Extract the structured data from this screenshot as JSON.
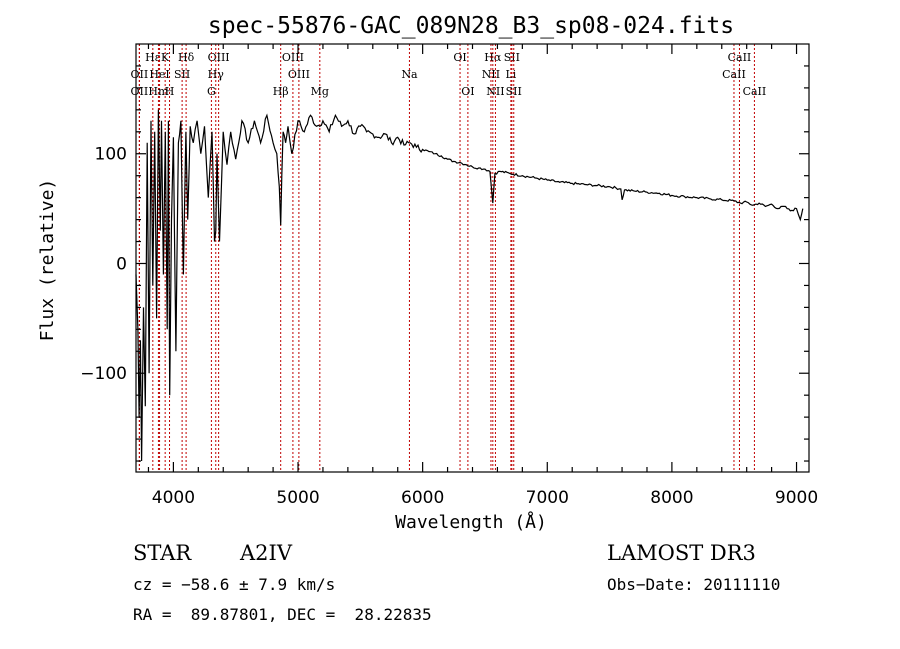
{
  "chart_data": {
    "type": "line",
    "title": "spec-55876-GAC_089N28_B3_sp08-024.fits",
    "xlabel": "Wavelength (Å)",
    "ylabel": "Flux (relative)",
    "xlim": [
      3700,
      9100
    ],
    "ylim": [
      -190,
      200
    ],
    "xticks": [
      4000,
      5000,
      6000,
      7000,
      8000,
      9000
    ],
    "xtick_labels": [
      "4000",
      "5000",
      "6000",
      "7000",
      "8000",
      "9000"
    ],
    "yticks": [
      100,
      0,
      -100
    ],
    "ytick_labels": [
      "100",
      "0",
      "−100"
    ],
    "grid": false,
    "spectrum": {
      "x": [
        3700,
        3715,
        3725,
        3735,
        3745,
        3760,
        3775,
        3790,
        3805,
        3820,
        3835,
        3850,
        3865,
        3880,
        3895,
        3905,
        3920,
        3935,
        3950,
        3960,
        3970,
        3985,
        4000,
        4020,
        4040,
        4060,
        4080,
        4100,
        4115,
        4135,
        4160,
        4190,
        4220,
        4250,
        4280,
        4310,
        4330,
        4340,
        4350,
        4370,
        4400,
        4430,
        4460,
        4500,
        4550,
        4600,
        4650,
        4700,
        4750,
        4800,
        4830,
        4850,
        4861,
        4870,
        4880,
        4900,
        4920,
        4950,
        5000,
        5050,
        5100,
        5150,
        5200,
        5250,
        5300,
        5350,
        5400,
        5450,
        5500,
        5550,
        5600,
        5650,
        5700,
        5750,
        5800,
        5850,
        5900,
        5950,
        6000,
        6050,
        6100,
        6150,
        6200,
        6250,
        6300,
        6350,
        6400,
        6450,
        6500,
        6540,
        6563,
        6580,
        6620,
        6700,
        6800,
        6900,
        7000,
        7100,
        7200,
        7300,
        7400,
        7500,
        7590,
        7600,
        7620,
        7700,
        7800,
        7900,
        8000,
        8100,
        8200,
        8300,
        8400,
        8500,
        8550,
        8600,
        8650,
        8700,
        8750,
        8800,
        8850,
        8900,
        8950,
        9000,
        9030,
        9050
      ],
      "y": [
        -10,
        -60,
        -140,
        -70,
        -180,
        -40,
        -130,
        110,
        -100,
        130,
        -20,
        120,
        -50,
        140,
        30,
        130,
        -10,
        120,
        -60,
        130,
        -120,
        40,
        115,
        -80,
        110,
        130,
        -10,
        120,
        40,
        125,
        110,
        130,
        100,
        125,
        60,
        120,
        20,
        30,
        100,
        20,
        120,
        90,
        120,
        95,
        130,
        110,
        130,
        110,
        135,
        110,
        100,
        70,
        35,
        80,
        120,
        110,
        125,
        100,
        130,
        120,
        135,
        125,
        130,
        120,
        135,
        125,
        130,
        118,
        125,
        120,
        118,
        115,
        118,
        110,
        115,
        108,
        110,
        106,
        104,
        102,
        100,
        98,
        95,
        93,
        92,
        90,
        88,
        87,
        86,
        84,
        55,
        82,
        84,
        82,
        80,
        78,
        76,
        74,
        73,
        72,
        71,
        70,
        68,
        58,
        67,
        66,
        65,
        64,
        62,
        61,
        60,
        59,
        58,
        57,
        55,
        56,
        53,
        55,
        52,
        54,
        50,
        52,
        48,
        50,
        40,
        50
      ]
    },
    "spectral_lines": [
      {
        "label": "Hε",
        "x": 3835,
        "row": 1
      },
      {
        "label": "OII",
        "x": 3727,
        "row": 2
      },
      {
        "label": "OII",
        "x": 3727,
        "row": 3
      },
      {
        "label": "K",
        "x": 3934,
        "row": 1
      },
      {
        "label": "Hδ",
        "x": 4102,
        "row": 1
      },
      {
        "label": "HeI",
        "x": 3889,
        "row": 2
      },
      {
        "label": "SII",
        "x": 4070,
        "row": 2
      },
      {
        "label": "Hm",
        "x": 3880,
        "row": 3
      },
      {
        "label": "H",
        "x": 3969,
        "row": 3
      },
      {
        "label": "OIII",
        "x": 4363,
        "row": 1
      },
      {
        "label": "Hγ",
        "x": 4340,
        "row": 2
      },
      {
        "label": "G",
        "x": 4305,
        "row": 3
      },
      {
        "label": "OIII",
        "x": 4959,
        "row": 1
      },
      {
        "label": "OIII",
        "x": 5007,
        "row": 2
      },
      {
        "label": "Hβ",
        "x": 4861,
        "row": 3
      },
      {
        "label": "Mg",
        "x": 5175,
        "row": 3
      },
      {
        "label": "Na",
        "x": 5894,
        "row": 2
      },
      {
        "label": "OI",
        "x": 6300,
        "row": 1
      },
      {
        "label": "OI",
        "x": 6363,
        "row": 3
      },
      {
        "label": "Hα",
        "x": 6563,
        "row": 1
      },
      {
        "label": "SII",
        "x": 6716,
        "row": 1
      },
      {
        "label": "NII",
        "x": 6548,
        "row": 2
      },
      {
        "label": "Li",
        "x": 6708,
        "row": 2
      },
      {
        "label": "NII",
        "x": 6584,
        "row": 3
      },
      {
        "label": "SII",
        "x": 6731,
        "row": 3
      },
      {
        "label": "CaII",
        "x": 8542,
        "row": 1
      },
      {
        "label": "CaII",
        "x": 8498,
        "row": 2
      },
      {
        "label": "CaII",
        "x": 8662,
        "row": 3
      }
    ]
  },
  "info": {
    "object_type": "STAR",
    "subclass": "A2IV",
    "survey": "LAMOST DR3",
    "redshift": "cz = −58.6 ± 7.9 km/s",
    "obs_date": "Obs−Date: 20111110",
    "coords": "RA =  89.87801, DEC =  28.22835"
  },
  "colors": {
    "line_marker": "#c00000",
    "spectrum": "#000000",
    "axes": "#000000"
  }
}
